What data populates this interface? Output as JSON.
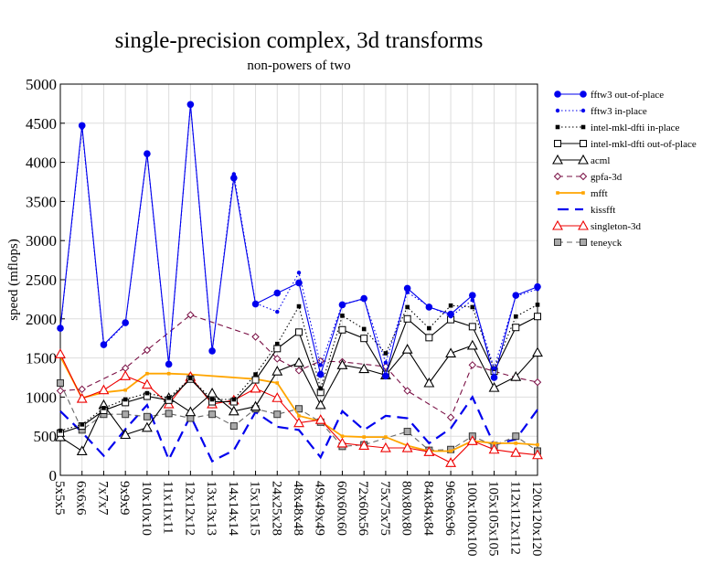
{
  "chart_data": {
    "type": "line",
    "title": "single-precision complex, 3d transforms",
    "subtitle": "non-powers of two",
    "xlabel": "",
    "ylabel": "speed (mflops)",
    "ylim": [
      0,
      5000
    ],
    "yticks": [
      0,
      500,
      1000,
      1500,
      2000,
      2500,
      3000,
      3500,
      4000,
      4500,
      5000
    ],
    "grid": true,
    "legend_position": "right",
    "categories": [
      "5x5x5",
      "6x6x6",
      "7x7x7",
      "9x9x9",
      "10x10x10",
      "11x11x11",
      "12x12x12",
      "13x13x13",
      "14x14x14",
      "15x15x15",
      "24x25x28",
      "48x48x48",
      "49x49x49",
      "60x60x60",
      "72x60x56",
      "75x75x75",
      "80x80x80",
      "84x84x84",
      "96x96x96",
      "100x100x100",
      "105x105x105",
      "112x112x112",
      "120x120x120"
    ],
    "series": [
      {
        "name": "fftw3 out-of-place",
        "color": "#0000ee",
        "dash": "solid",
        "marker": "filled-circle",
        "values": [
          1880,
          4470,
          1670,
          1950,
          4110,
          1420,
          4740,
          1590,
          3800,
          2190,
          2330,
          2460,
          1290,
          2180,
          2260,
          1270,
          2390,
          2150,
          2060,
          2300,
          1250,
          2300,
          2410
        ]
      },
      {
        "name": "fftw3 in-place",
        "color": "#0000ee",
        "dash": "dotted",
        "marker": "filled-dot",
        "values": [
          1870,
          4440,
          1660,
          1940,
          4100,
          1410,
          4730,
          1580,
          3850,
          2200,
          2090,
          2590,
          1410,
          2190,
          2250,
          1440,
          2340,
          2160,
          2030,
          2240,
          1370,
          2290,
          2380
        ]
      },
      {
        "name": "intel-mkl-dfti in-place",
        "color": "#000000",
        "dash": "dotted",
        "marker": "filled-square",
        "values": [
          570,
          650,
          860,
          970,
          1050,
          990,
          1240,
          970,
          970,
          1290,
          1680,
          2160,
          1110,
          2040,
          1870,
          1560,
          2150,
          1880,
          2170,
          2150,
          1360,
          2030,
          2180
        ]
      },
      {
        "name": "intel-mkl-dfti out-of-place",
        "color": "#000000",
        "dash": "solid",
        "marker": "open-square",
        "values": [
          540,
          630,
          830,
          930,
          1010,
          960,
          1230,
          940,
          940,
          1220,
          1620,
          1830,
          1060,
          1860,
          1750,
          1290,
          2000,
          1760,
          1990,
          1900,
          1330,
          1890,
          2030
        ]
      },
      {
        "name": "acml",
        "color": "#000000",
        "dash": "solid",
        "marker": "open-triangle",
        "values": [
          490,
          310,
          900,
          520,
          610,
          990,
          810,
          1050,
          820,
          880,
          1330,
          1440,
          900,
          1410,
          1360,
          1280,
          1610,
          1180,
          1560,
          1660,
          1120,
          1260,
          1570
        ]
      },
      {
        "name": "gpfa-3d",
        "color": "#7a1045",
        "dash": "dashed",
        "marker": "open-diamond",
        "values": [
          1080,
          1100,
          null,
          1370,
          1600,
          null,
          2050,
          null,
          null,
          1770,
          1490,
          1340,
          1460,
          1450,
          null,
          1390,
          1080,
          null,
          740,
          1410,
          null,
          1250,
          1190
        ]
      },
      {
        "name": "mfft",
        "color": "#ffa500",
        "dash": "solid",
        "marker": "small-square",
        "values": [
          1520,
          990,
          1060,
          1090,
          1300,
          1300,
          1290,
          null,
          null,
          1230,
          1180,
          760,
          690,
          500,
          490,
          490,
          380,
          310,
          310,
          440,
          410,
          410,
          390
        ]
      },
      {
        "name": "kissfft",
        "color": "#0000ee",
        "dash": "longdash",
        "marker": "none",
        "values": [
          820,
          550,
          250,
          590,
          900,
          200,
          760,
          180,
          320,
          810,
          620,
          580,
          230,
          820,
          580,
          760,
          730,
          410,
          600,
          1000,
          390,
          460,
          840
        ]
      },
      {
        "name": "singleton-3d",
        "color": "#ee0000",
        "dash": "solid",
        "marker": "open-triangle",
        "values": [
          1550,
          980,
          1090,
          1270,
          1160,
          910,
          1260,
          910,
          960,
          1110,
          990,
          670,
          710,
          410,
          380,
          350,
          350,
          300,
          160,
          440,
          330,
          290,
          260
        ]
      },
      {
        "name": "teneyck",
        "color": "#666666",
        "dash": "dashed",
        "marker": "gray-square",
        "values": [
          1180,
          580,
          780,
          780,
          750,
          790,
          730,
          780,
          630,
          850,
          780,
          850,
          680,
          370,
          390,
          null,
          560,
          320,
          330,
          500,
          380,
          500,
          310
        ]
      }
    ]
  }
}
